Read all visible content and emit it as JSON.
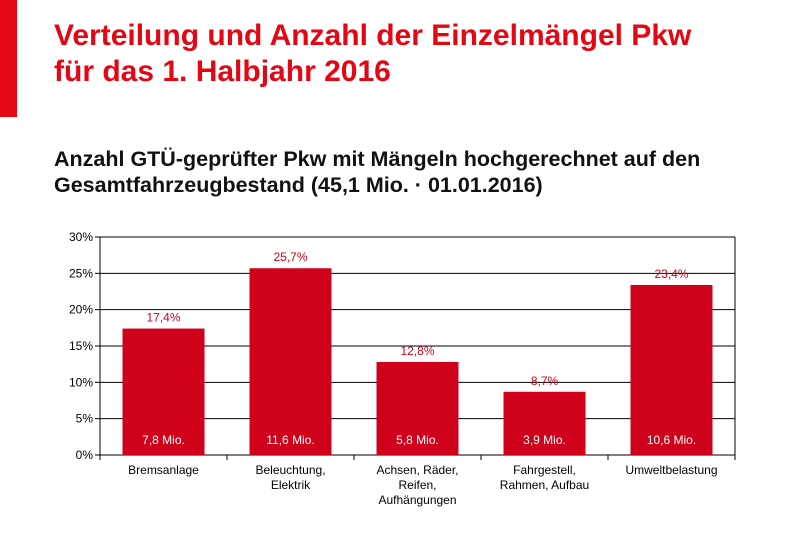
{
  "header": {
    "title_line1": "Verteilung und Anzahl der Einzelmängel Pkw",
    "title_line2": "für das 1. Halbjahr 2016",
    "subtitle_line1": "Anzahl GTÜ-geprüfter Pkw mit Mängeln hochgerechnet auf den",
    "subtitle_line2": "Gesamtfahrzeugbestand (45,1 Mio. · 01.01.2016)"
  },
  "colors": {
    "accent": "#e30613",
    "bar": "#d0021b",
    "label_text": "#d0021b",
    "gridline": "#000000"
  },
  "chart_data": {
    "type": "bar",
    "categories": [
      [
        "Bremsanlage"
      ],
      [
        "Beleuchtung,",
        "Elektrik"
      ],
      [
        "Achsen, Räder,",
        "Reifen,",
        "Aufhängungen"
      ],
      [
        "Fahrgestell,",
        "Rahmen, Aufbau"
      ],
      [
        "Umweltbelastung"
      ]
    ],
    "values": [
      17.4,
      25.7,
      12.8,
      8.7,
      23.4
    ],
    "value_labels": [
      "17,4%",
      "25,7%",
      "12,8%",
      "8,7%",
      "23,4%"
    ],
    "inner_labels": [
      "7,8 Mio.",
      "11,6 Mio.",
      "5,8 Mio.",
      "3,9 Mio.",
      "10,6 Mio."
    ],
    "ylim": [
      0,
      30
    ],
    "yticks": [
      0,
      5,
      10,
      15,
      20,
      25,
      30
    ],
    "ytick_labels": [
      "0%",
      "5%",
      "10%",
      "15%",
      "20%",
      "25%",
      "30%"
    ],
    "grid": true,
    "xlabel": "",
    "ylabel": ""
  }
}
